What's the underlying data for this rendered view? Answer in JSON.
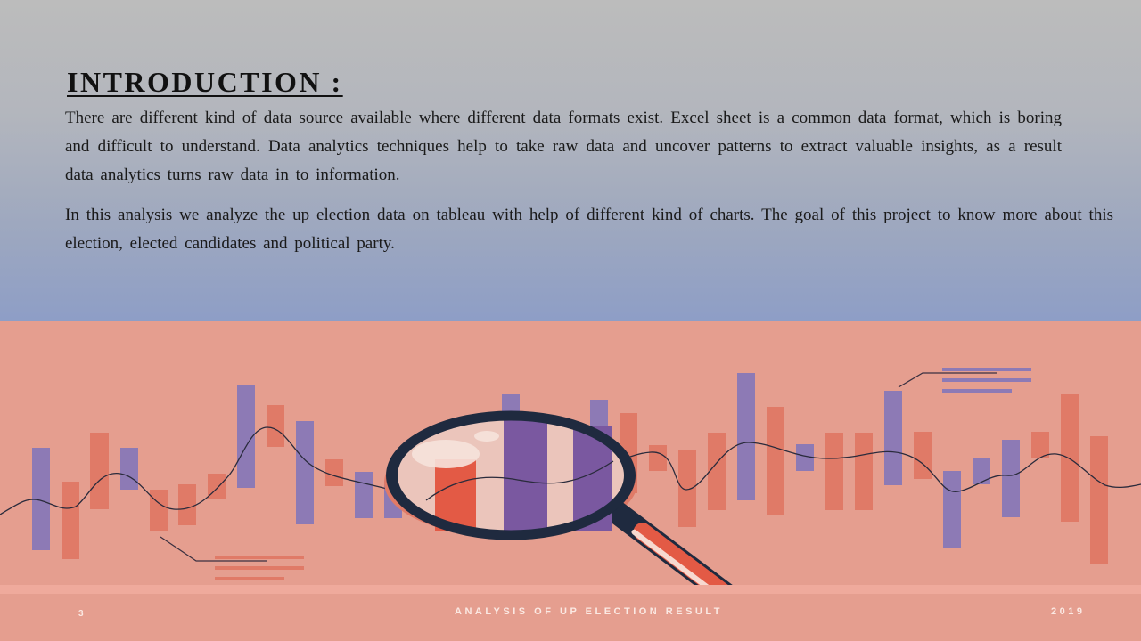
{
  "slide": {
    "title": "INTRODUCTION :",
    "paragraphs": [
      "There are different kind of data source available where different data formats exist. Excel sheet is a common data format, which is boring and difficult to understand. Data analytics techniques help to take raw data and uncover patterns to extract valuable insights, as a result data analytics turns raw data in to information.",
      "In this analysis we analyze the up election data on tableau with help of different kind of charts. The goal of this project to know more about this election, elected candidates and political party."
    ]
  },
  "footer": {
    "page_number": "3",
    "presentation_title": "ANALYSIS OF UP ELECTION RESULT",
    "year": "2019"
  },
  "colors": {
    "bottom_background": "#e59e8f",
    "bar_orange": "#e07a67",
    "bar_purple": "#8d7ab5",
    "magnifier_ring": "#1f2a3f",
    "text_dark": "#1a1a1a"
  },
  "illustration": {
    "icons": [
      "magnifying-glass-icon"
    ]
  }
}
